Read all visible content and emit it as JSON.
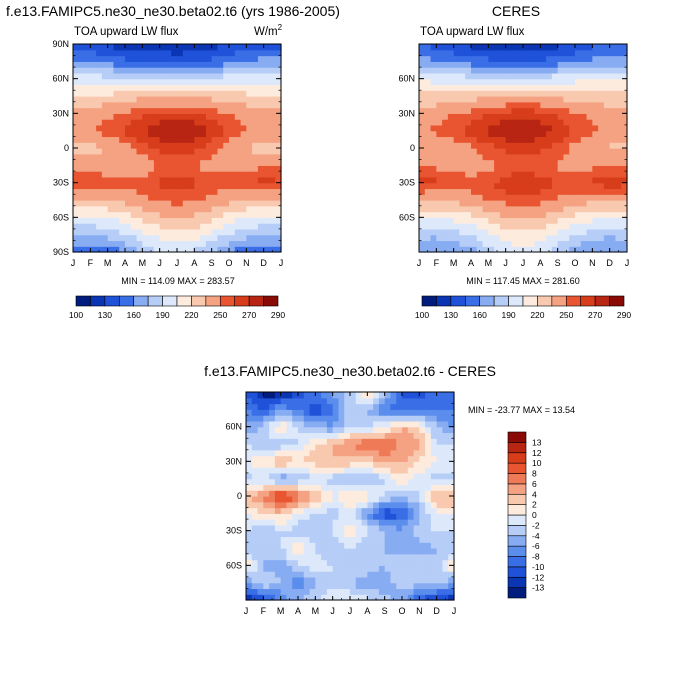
{
  "panels": {
    "model": {
      "title": "f.e13.FAMIPC5.ne30_ne30.beta02.t6 (yrs 1986-2005)",
      "subtitle": "TOA upward LW flux",
      "units": "W/m",
      "units_sup": "2",
      "minmax": "MIN = 114.09 MAX = 283.57"
    },
    "ceres": {
      "title": "CERES",
      "subtitle": "TOA upward LW flux",
      "minmax": "MIN = 117.45 MAX = 281.60"
    },
    "diff": {
      "title": "f.e13.FAMIPC5.ne30_ne30.beta02.t6 - CERES",
      "minmax": "MIN = -23.77 MAX =  13.54"
    }
  },
  "colors": {
    "scale": [
      "#001d7d",
      "#0a35b3",
      "#1f52d9",
      "#3a6ee6",
      "#5b8ded",
      "#87acf2",
      "#b5cdf7",
      "#dde9fb",
      "#fdebde",
      "#f9c9af",
      "#f4a282",
      "#ee7a58",
      "#e85530",
      "#d83d1b",
      "#b82512",
      "#8a0a06"
    ]
  },
  "chart_data": [
    {
      "type": "heatmap",
      "name": "model",
      "title": "f.e13.FAMIPC5.ne30_ne30.beta02.t6 (yrs 1986-2005)",
      "variable": "TOA upward LW flux",
      "units": "W/m2",
      "x_ticks": [
        "J",
        "F",
        "M",
        "A",
        "M",
        "J",
        "J",
        "A",
        "S",
        "O",
        "N",
        "D",
        "J"
      ],
      "y_ticks": [
        "90S",
        "60S",
        "30S",
        "0",
        "30N",
        "60N",
        "90N"
      ],
      "y_tick_values": [
        -90,
        -60,
        -30,
        0,
        30,
        60,
        90
      ],
      "ylim": [
        -90,
        90
      ],
      "min": 114.09,
      "max": 283.57,
      "colorbar_levels": [
        100,
        115,
        130,
        145,
        160,
        175,
        190,
        205,
        220,
        235,
        250,
        260,
        270,
        280,
        290
      ],
      "colorbar_labels": [
        "100",
        "130",
        "160",
        "190",
        "220",
        "250",
        "270",
        "290"
      ],
      "grid": [
        [
          150,
          148,
          150,
          160,
          178,
          190,
          192,
          188,
          175,
          160,
          150,
          148,
          150
        ],
        [
          180,
          178,
          180,
          188,
          200,
          210,
          215,
          212,
          200,
          188,
          180,
          178,
          180
        ],
        [
          200,
          200,
          205,
          212,
          222,
          232,
          236,
          232,
          222,
          212,
          205,
          200,
          200
        ],
        [
          235,
          232,
          235,
          240,
          248,
          252,
          254,
          252,
          246,
          240,
          236,
          234,
          235
        ],
        [
          262,
          262,
          258,
          254,
          255,
          262,
          266,
          262,
          256,
          256,
          260,
          264,
          262
        ],
        [
          248,
          244,
          240,
          238,
          242,
          250,
          252,
          250,
          246,
          244,
          246,
          248,
          248
        ],
        [
          228,
          230,
          236,
          245,
          255,
          262,
          265,
          262,
          254,
          244,
          234,
          228,
          228
        ],
        [
          245,
          250,
          255,
          262,
          270,
          280,
          282,
          278,
          268,
          258,
          250,
          246,
          245
        ],
        [
          242,
          244,
          248,
          252,
          258,
          262,
          264,
          262,
          256,
          250,
          246,
          242,
          242
        ],
        [
          222,
          222,
          224,
          228,
          232,
          234,
          235,
          234,
          230,
          226,
          224,
          222,
          222
        ],
        [
          200,
          198,
          196,
          195,
          196,
          196,
          196,
          196,
          196,
          198,
          200,
          200,
          200
        ],
        [
          165,
          160,
          155,
          150,
          148,
          146,
          145,
          146,
          150,
          155,
          160,
          165,
          165
        ],
        [
          140,
          135,
          128,
          122,
          118,
          115,
          114,
          116,
          122,
          130,
          138,
          140,
          140
        ]
      ]
    },
    {
      "type": "heatmap",
      "name": "ceres",
      "title": "CERES",
      "variable": "TOA upward LW flux",
      "x_ticks": [
        "J",
        "F",
        "M",
        "A",
        "M",
        "J",
        "J",
        "A",
        "S",
        "O",
        "N",
        "D",
        "J"
      ],
      "y_ticks": [
        "60S",
        "30S",
        "0",
        "30N",
        "60N"
      ],
      "y_tick_values": [
        -60,
        -30,
        0,
        30,
        60
      ],
      "ylim": [
        -90,
        90
      ],
      "min": 117.45,
      "max": 281.6,
      "colorbar_levels": [
        100,
        115,
        130,
        145,
        160,
        175,
        190,
        205,
        220,
        235,
        250,
        260,
        270,
        280,
        290
      ],
      "colorbar_labels": [
        "100",
        "130",
        "160",
        "190",
        "220",
        "250",
        "270",
        "290"
      ],
      "grid": [
        [
          158,
          156,
          160,
          168,
          184,
          195,
          198,
          194,
          182,
          168,
          158,
          156,
          158
        ],
        [
          180,
          178,
          182,
          190,
          202,
          212,
          216,
          213,
          202,
          190,
          182,
          178,
          180
        ],
        [
          205,
          205,
          210,
          216,
          225,
          234,
          238,
          234,
          225,
          216,
          210,
          205,
          205
        ],
        [
          238,
          235,
          238,
          243,
          250,
          254,
          256,
          254,
          248,
          242,
          238,
          236,
          238
        ],
        [
          264,
          262,
          258,
          256,
          258,
          266,
          270,
          266,
          260,
          258,
          262,
          266,
          264
        ],
        [
          252,
          248,
          244,
          242,
          246,
          252,
          254,
          252,
          248,
          246,
          248,
          250,
          252
        ],
        [
          232,
          234,
          240,
          248,
          256,
          262,
          264,
          262,
          256,
          246,
          238,
          232,
          232
        ],
        [
          248,
          252,
          258,
          264,
          272,
          278,
          280,
          276,
          268,
          260,
          252,
          248,
          248
        ],
        [
          244,
          246,
          250,
          254,
          260,
          264,
          266,
          264,
          258,
          252,
          248,
          244,
          244
        ],
        [
          224,
          224,
          226,
          230,
          234,
          236,
          237,
          236,
          232,
          228,
          226,
          224,
          224
        ],
        [
          203,
          200,
          198,
          197,
          197,
          197,
          197,
          197,
          198,
          200,
          203,
          203,
          203
        ],
        [
          168,
          163,
          158,
          152,
          150,
          148,
          146,
          148,
          152,
          158,
          164,
          168,
          168
        ],
        [
          145,
          140,
          132,
          126,
          122,
          118,
          118,
          120,
          126,
          134,
          142,
          145,
          145
        ]
      ]
    },
    {
      "type": "heatmap",
      "name": "difference",
      "title": "f.e13.FAMIPC5.ne30_ne30.beta02.t6 - CERES",
      "x_ticks": [
        "J",
        "F",
        "M",
        "A",
        "M",
        "J",
        "J",
        "A",
        "S",
        "O",
        "N",
        "D",
        "J"
      ],
      "y_ticks": [
        "60S",
        "30S",
        "0",
        "30N",
        "60N"
      ],
      "y_tick_values": [
        -60,
        -30,
        0,
        30,
        60
      ],
      "ylim": [
        -90,
        90
      ],
      "min": -23.77,
      "max": 13.54,
      "colorbar_levels": [
        -14,
        -13,
        -12,
        -10,
        -8,
        -6,
        -4,
        -2,
        0,
        2,
        4,
        6,
        8,
        10,
        12,
        13,
        14
      ],
      "colorbar_labels": [
        "-13",
        "-12",
        "-10",
        "-8",
        "-6",
        "-4",
        "-2",
        "0",
        "2",
        "4",
        "6",
        "8",
        "10",
        "12",
        "13"
      ],
      "grid": [
        [
          -14,
          -12,
          -8,
          -4,
          -2,
          -1,
          0,
          -1,
          -3,
          -6,
          -10,
          -13,
          -14
        ],
        [
          -6,
          -2,
          -4,
          -8,
          -4,
          -2,
          -4,
          -6,
          -6,
          -2,
          -4,
          -3,
          -6
        ],
        [
          2,
          -4,
          -6,
          -2,
          -1,
          -2,
          -2,
          -2,
          -4,
          -2,
          -2,
          -3,
          2
        ],
        [
          -4,
          -3,
          -2,
          2,
          -2,
          -4,
          -2,
          -3,
          -4,
          -5,
          -6,
          -4,
          -4
        ],
        [
          -2,
          -4,
          -2,
          -3,
          -3,
          -2,
          2,
          -2,
          -4,
          -6,
          -2,
          -2,
          -2
        ],
        [
          0,
          2,
          3,
          -1,
          -2,
          -3,
          -1,
          -6,
          -12,
          -10,
          -5,
          0,
          0
        ],
        [
          4,
          6,
          12,
          8,
          4,
          0,
          2,
          1,
          -2,
          -4,
          -2,
          4,
          4
        ],
        [
          -3,
          -2,
          -6,
          -4,
          -2,
          -3,
          -4,
          -5,
          -2,
          2,
          -1,
          -3,
          -3
        ],
        [
          0,
          2,
          4,
          2,
          3,
          4,
          3,
          2,
          5,
          4,
          2,
          0,
          0
        ],
        [
          -2,
          -4,
          -3,
          -2,
          2,
          4,
          6,
          8,
          8,
          6,
          4,
          -2,
          -2
        ],
        [
          -6,
          -3,
          2,
          -2,
          -4,
          -6,
          -2,
          -2,
          0,
          4,
          2,
          -4,
          -6
        ],
        [
          -8,
          -10,
          -6,
          -8,
          -12,
          -8,
          -3,
          -4,
          -8,
          -10,
          -8,
          -8,
          -8
        ],
        [
          -10,
          -14,
          -14,
          -12,
          -8,
          -6,
          -3,
          2,
          -4,
          -10,
          -12,
          -8,
          -10
        ]
      ]
    }
  ]
}
